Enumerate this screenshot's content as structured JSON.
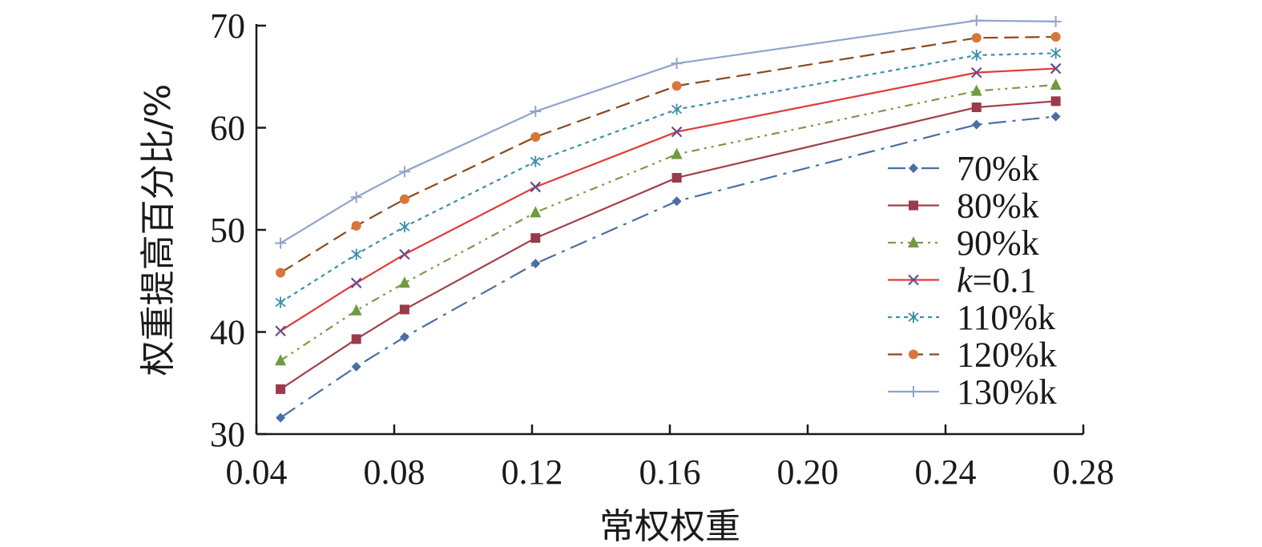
{
  "chart_data": {
    "type": "line",
    "title": "",
    "xlabel": "常权权重",
    "ylabel": "权重提高百分比/%",
    "xlim": [
      0.04,
      0.28
    ],
    "ylim": [
      30,
      70
    ],
    "xticks": [
      "0.04",
      "0.08",
      "0.12",
      "0.16",
      "0.20",
      "0.24",
      "0.28"
    ],
    "yticks": [
      "30",
      "40",
      "50",
      "60",
      "70"
    ],
    "grid": false,
    "legend_position": "right",
    "x": [
      0.047,
      0.069,
      0.083,
      0.121,
      0.162,
      0.249,
      0.272
    ],
    "series": [
      {
        "name": "70%k",
        "values": [
          31.6,
          36.6,
          39.5,
          46.7,
          52.8,
          60.3,
          61.1
        ],
        "color": "#4a6fa5",
        "marker": "diamond",
        "dash": "22 8 4 8"
      },
      {
        "name": "80%k",
        "values": [
          34.4,
          39.3,
          42.2,
          49.2,
          55.1,
          62.0,
          62.6
        ],
        "color": "#a0414a",
        "marker": "square",
        "dash": ""
      },
      {
        "name": "90%k",
        "values": [
          37.2,
          42.1,
          44.8,
          51.7,
          57.4,
          63.6,
          64.2
        ],
        "color": "#7d9a4a",
        "marker": "triangle",
        "dash": "10 6 3 6 3 6"
      },
      {
        "name": "k=0.1",
        "name_italic": "k",
        "name_rest": "=0.1",
        "values": [
          40.1,
          44.8,
          47.6,
          54.2,
          59.6,
          65.4,
          65.8
        ],
        "color": "#e03a3a",
        "marker": "x",
        "dash": ""
      },
      {
        "name": "110%k",
        "values": [
          42.9,
          47.6,
          50.3,
          56.7,
          61.8,
          67.1,
          67.3
        ],
        "color": "#3d90a8",
        "marker": "asterisk",
        "dash": "5 5"
      },
      {
        "name": "120%k",
        "values": [
          45.8,
          50.4,
          53.0,
          59.1,
          64.1,
          68.8,
          68.9
        ],
        "color": "#8b4a1f",
        "marker": "circle",
        "dash": "18 8"
      },
      {
        "name": "130%k",
        "values": [
          48.7,
          53.2,
          55.7,
          61.6,
          66.3,
          70.5,
          70.4
        ],
        "color": "#8fa3cc",
        "marker": "plus",
        "dash": ""
      }
    ],
    "marker_colors": {
      "diamond": "#4a6fa5",
      "square": "#9b3a4a",
      "triangle": "#6f9a3f",
      "x": "#6a4a8a",
      "asterisk": "#3d90a8",
      "circle": "#d8763a",
      "plus": "#8fa3cc"
    }
  }
}
